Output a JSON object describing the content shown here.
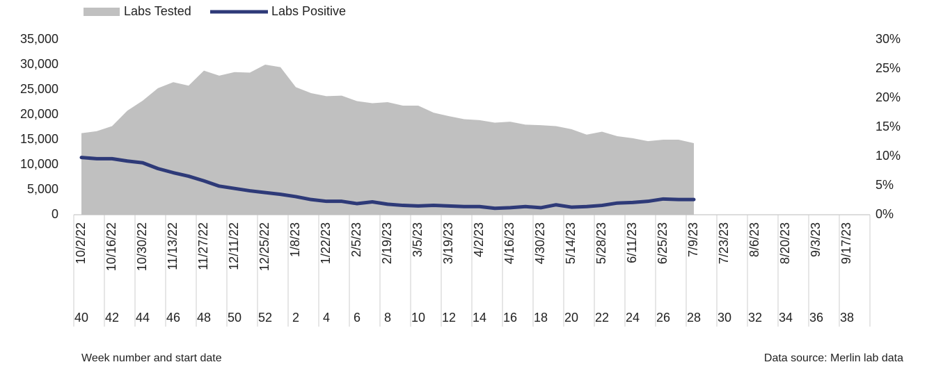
{
  "chart_data": {
    "type": "area_line",
    "categories": [
      "10/2/22",
      null,
      "10/16/22",
      null,
      "10/30/22",
      null,
      "11/13/22",
      null,
      "11/27/22",
      null,
      "12/11/22",
      null,
      "12/25/22",
      null,
      "1/8/23",
      null,
      "1/22/23",
      null,
      "2/5/23",
      null,
      "2/19/23",
      null,
      "3/5/23",
      null,
      "3/19/23",
      null,
      "4/2/23",
      null,
      "4/16/23",
      null,
      "4/30/23",
      null,
      "5/14/23",
      null,
      "5/28/23",
      null,
      "6/11/23",
      null,
      "6/25/23",
      null,
      "7/9/23",
      null,
      "7/23/23",
      null,
      "8/6/23",
      null,
      "8/20/23",
      null,
      "9/3/23",
      null,
      "9/17/23",
      null
    ],
    "week_numbers": [
      "40",
      null,
      "42",
      null,
      "44",
      null,
      "46",
      null,
      "48",
      null,
      "50",
      null,
      "52",
      null,
      "2",
      null,
      "4",
      null,
      "6",
      null,
      "8",
      null,
      "10",
      null,
      "12",
      null,
      "14",
      null,
      "16",
      null,
      "18",
      null,
      "20",
      null,
      "22",
      null,
      "24",
      null,
      "26",
      null,
      "28",
      null,
      "30",
      null,
      "32",
      null,
      "34",
      null,
      "36",
      null,
      "38",
      null
    ],
    "x_label": "Week number and start date",
    "source": "Data source: Merlin lab data",
    "series": [
      {
        "name": "Labs Tested",
        "kind": "area",
        "color": "#c0c0c0",
        "values": [
          16300,
          16700,
          17700,
          20800,
          22800,
          25300,
          26500,
          25800,
          28800,
          27800,
          28500,
          28400,
          30000,
          29500,
          25500,
          24300,
          23700,
          23800,
          22700,
          22300,
          22500,
          21800,
          21800,
          20400,
          19700,
          19100,
          18900,
          18400,
          18600,
          18000,
          17900,
          17700,
          17100,
          16000,
          16600,
          15700,
          15300,
          14700,
          15000,
          15000,
          14300,
          null,
          null,
          null,
          null,
          null,
          null,
          null,
          null,
          null,
          null,
          null
        ]
      },
      {
        "name": "Labs Positive",
        "kind": "line",
        "axis": "y2",
        "color": "#2e3a78",
        "values": [
          9.8,
          9.6,
          9.6,
          9.2,
          8.9,
          7.9,
          7.2,
          6.6,
          5.8,
          4.9,
          4.5,
          4.1,
          3.8,
          3.5,
          3.1,
          2.6,
          2.3,
          2.3,
          1.9,
          2.2,
          1.8,
          1.6,
          1.5,
          1.6,
          1.5,
          1.4,
          1.4,
          1.1,
          1.2,
          1.4,
          1.2,
          1.7,
          1.3,
          1.4,
          1.6,
          2.0,
          2.1,
          2.3,
          2.7,
          2.6,
          2.6,
          null,
          null,
          null,
          null,
          null,
          null,
          null,
          null,
          null,
          null,
          null
        ]
      }
    ],
    "ylim": [
      0,
      35000
    ],
    "yticks": [
      0,
      {
        "value": 5000,
        "label": "5,000"
      },
      {
        "value": 10000,
        "label": "10,000"
      },
      {
        "value": 15000,
        "label": "15,000"
      },
      {
        "value": 20000,
        "label": "20,000"
      },
      {
        "value": 25000,
        "label": "25,000"
      },
      {
        "value": 30000,
        "label": "30,000"
      },
      {
        "value": 35000,
        "label": "35,000"
      }
    ],
    "y2lim": [
      0,
      30
    ],
    "y2ticks": [
      {
        "value": 0,
        "label": "0%"
      },
      {
        "value": 5,
        "label": "5%"
      },
      {
        "value": 10,
        "label": "10%"
      },
      {
        "value": 15,
        "label": "15%"
      },
      {
        "value": 20,
        "label": "20%"
      },
      {
        "value": 25,
        "label": "25%"
      },
      {
        "value": 30,
        "label": "30%"
      }
    ],
    "grid": false
  }
}
